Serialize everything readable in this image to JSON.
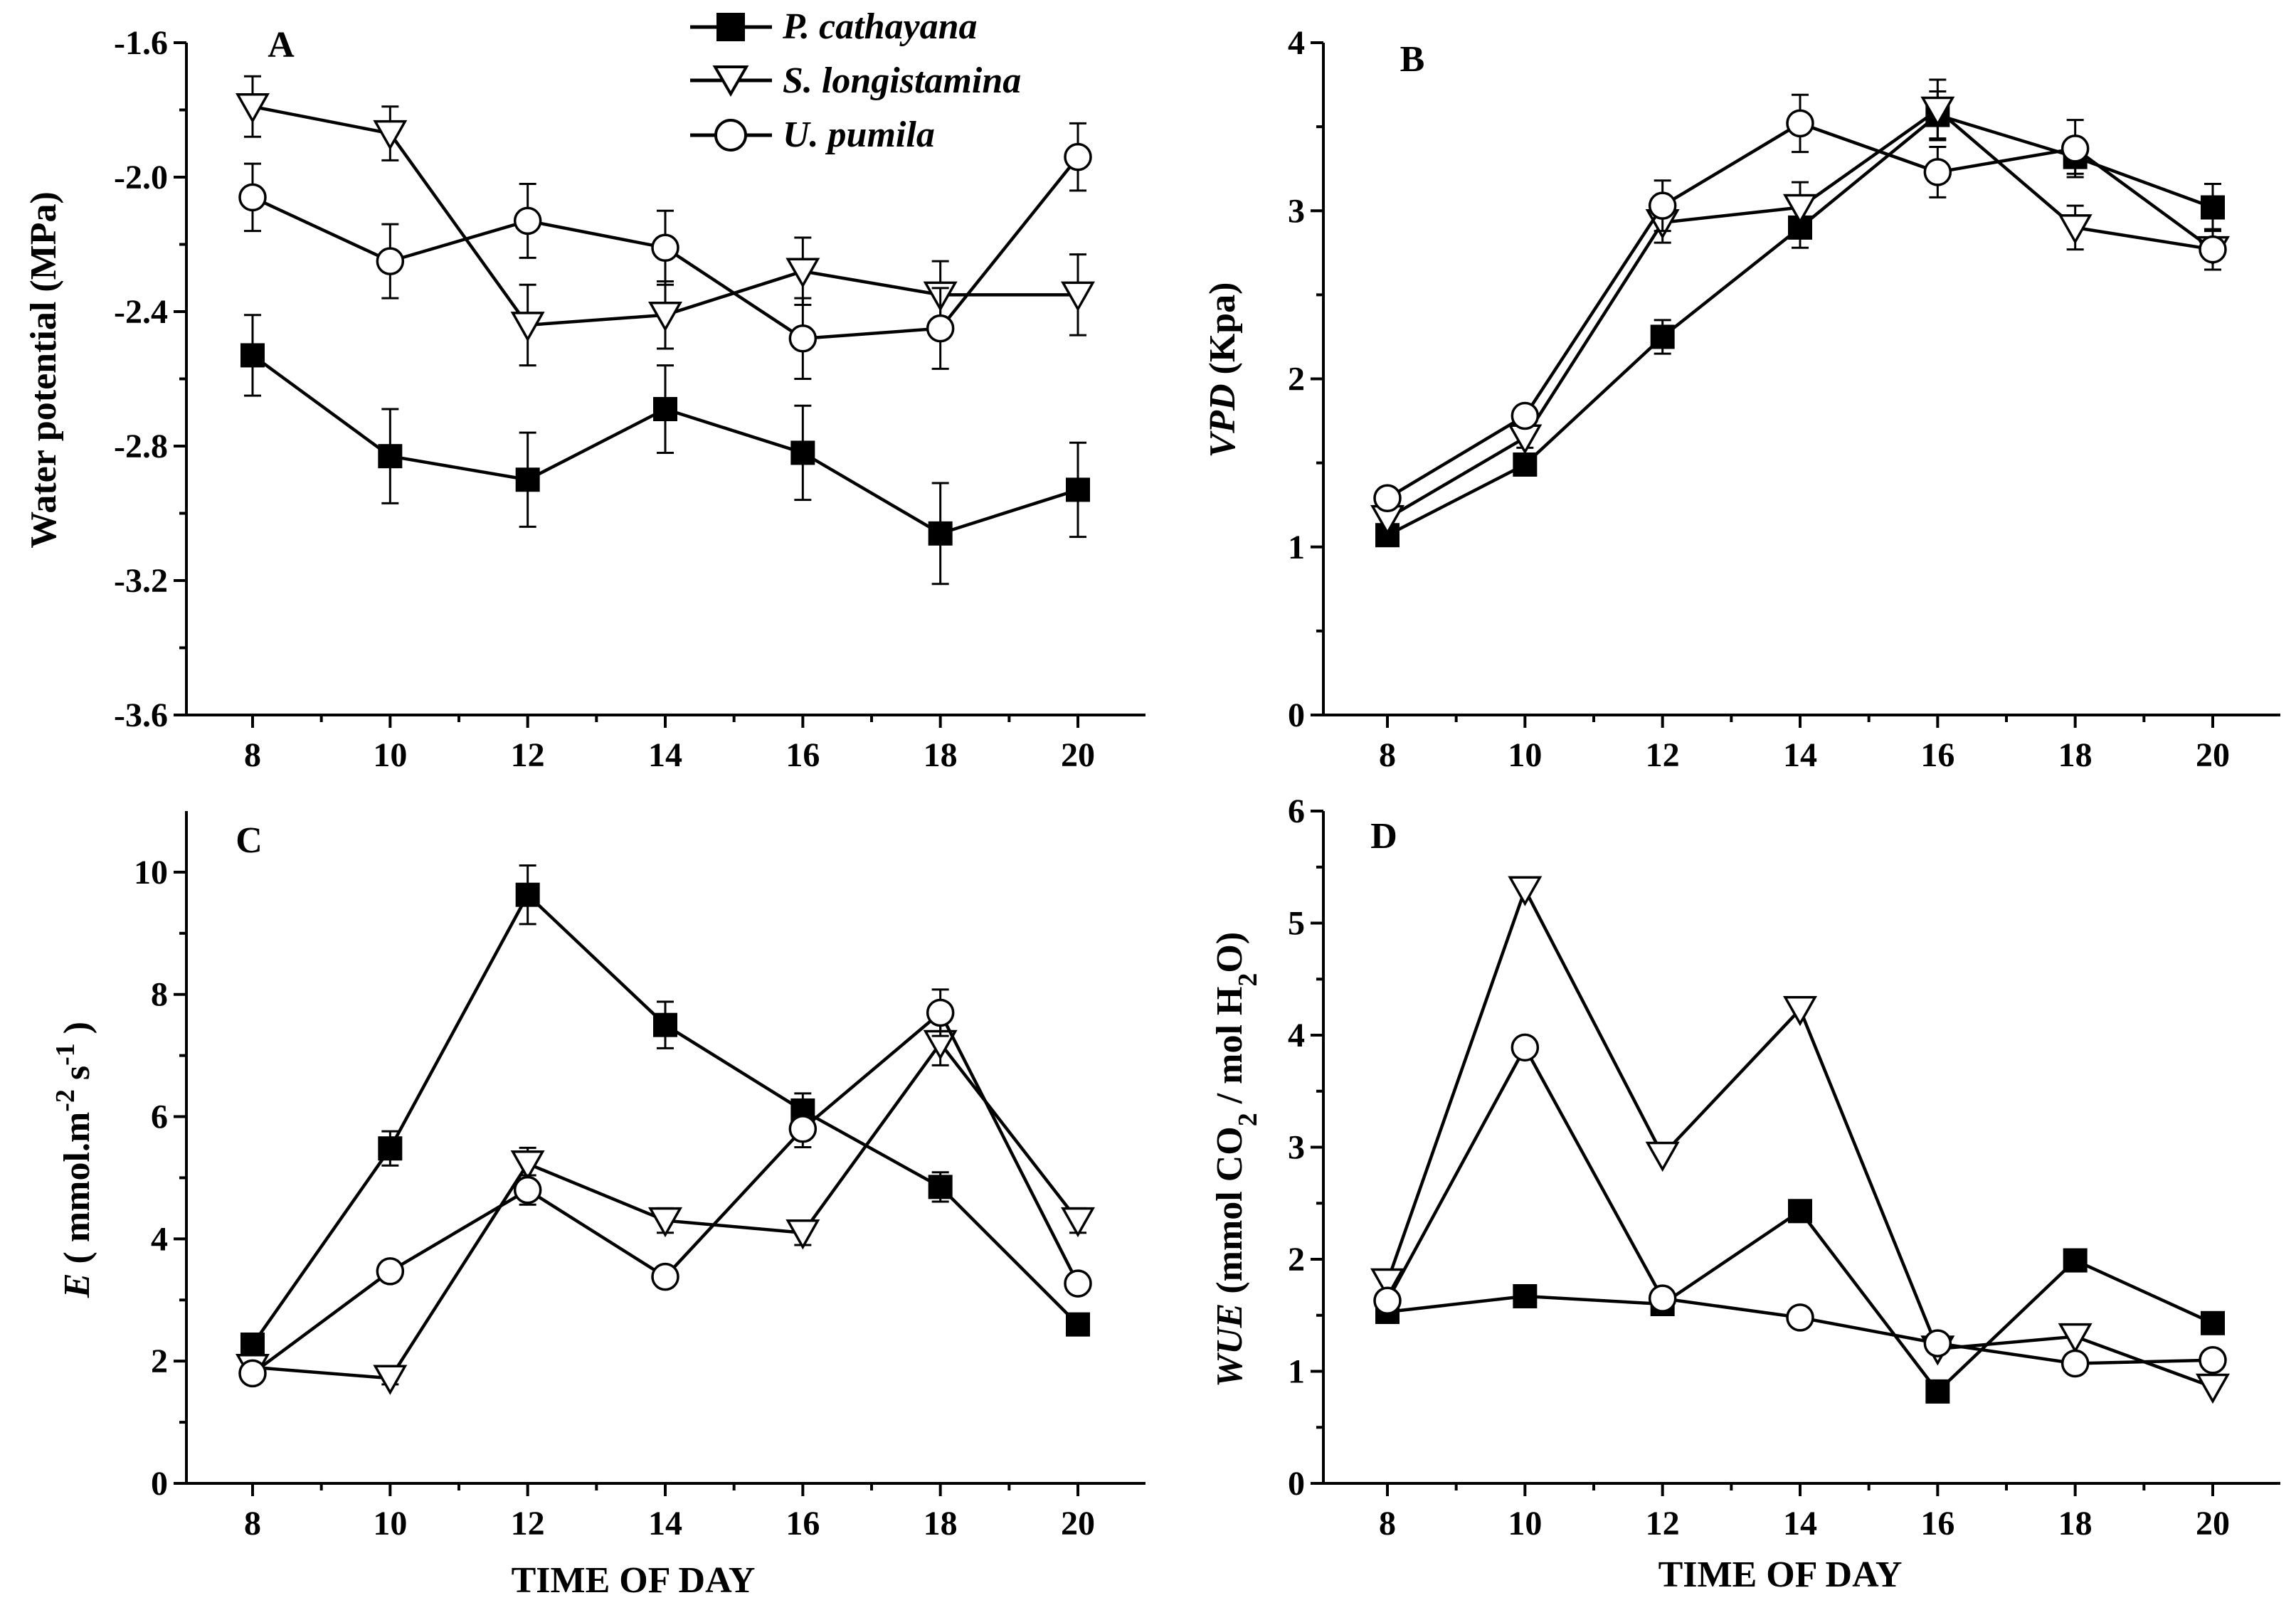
{
  "figure": {
    "x_label": "TIME OF DAY",
    "legend": [
      {
        "name": "P. cathayana",
        "marker": "square-filled"
      },
      {
        "name": "S. longistamina",
        "marker": "triangle-down-open"
      },
      {
        "name": "U. pumila",
        "marker": "circle-open"
      }
    ],
    "colors": {
      "line": "#000000",
      "marker_fill_open": "#ffffff",
      "marker_fill_solid": "#000000",
      "background": "#ffffff"
    }
  },
  "chart_data": [
    {
      "panel": "A",
      "type": "line",
      "title": "A",
      "ylabel_parts": [
        "Water potential (MPa)"
      ],
      "xlabel": "",
      "x": [
        8,
        10,
        12,
        14,
        16,
        18,
        20
      ],
      "xticks": [
        "8",
        "10",
        "12",
        "14",
        "16",
        "18",
        "20"
      ],
      "ylim": [
        -3.6,
        -1.6
      ],
      "yticks": [
        "-1.6",
        "-2.0",
        "-2.4",
        "-2.8",
        "-3.2",
        "-3.6"
      ],
      "ytick_values": [
        -1.6,
        -2.0,
        -2.4,
        -2.8,
        -3.2,
        -3.6
      ],
      "series": [
        {
          "name": "P. cathayana",
          "marker": "square",
          "values": [
            -2.53,
            -2.83,
            -2.9,
            -2.69,
            -2.82,
            -3.06,
            -2.93
          ],
          "errors": [
            0.12,
            0.14,
            0.14,
            0.13,
            0.14,
            0.15,
            0.14
          ]
        },
        {
          "name": "S. longistamina",
          "marker": "triangle",
          "values": [
            -1.79,
            -1.87,
            -2.44,
            -2.41,
            -2.28,
            -2.35,
            -2.35
          ],
          "errors": [
            0.09,
            0.08,
            0.12,
            0.1,
            0.1,
            0.1,
            0.12
          ]
        },
        {
          "name": "U. pumila",
          "marker": "circle",
          "values": [
            -2.06,
            -2.25,
            -2.13,
            -2.21,
            -2.48,
            -2.45,
            -1.94
          ],
          "errors": [
            0.1,
            0.11,
            0.11,
            0.11,
            0.12,
            0.12,
            0.1
          ]
        }
      ]
    },
    {
      "panel": "B",
      "type": "line",
      "title": "B",
      "ylabel_parts": [
        "VPD",
        " (Kpa)"
      ],
      "xlabel": "",
      "x": [
        8,
        10,
        12,
        14,
        16,
        18,
        20
      ],
      "xticks": [
        "8",
        "10",
        "12",
        "14",
        "16",
        "18",
        "20"
      ],
      "ylim": [
        0,
        4
      ],
      "yticks": [
        "0",
        "1",
        "2",
        "3",
        "4"
      ],
      "ytick_values": [
        0,
        1,
        2,
        3,
        4
      ],
      "series": [
        {
          "name": "P. cathayana",
          "marker": "square",
          "values": [
            1.07,
            1.49,
            2.25,
            2.9,
            3.57,
            3.32,
            3.02
          ],
          "errors": [
            0.04,
            0.06,
            0.1,
            0.12,
            0.14,
            0.1,
            0.14
          ]
        },
        {
          "name": "S. longistamina",
          "marker": "triangle",
          "values": [
            1.17,
            1.65,
            2.93,
            3.02,
            3.6,
            2.9,
            2.77
          ],
          "errors": [
            0.04,
            0.06,
            0.12,
            0.15,
            0.18,
            0.13,
            0.12
          ]
        },
        {
          "name": "U. pumila",
          "marker": "circle",
          "values": [
            1.29,
            1.78,
            3.03,
            3.52,
            3.23,
            3.37,
            2.77
          ],
          "errors": [
            0.04,
            0.06,
            0.15,
            0.17,
            0.15,
            0.17,
            0.12
          ]
        }
      ]
    },
    {
      "panel": "C",
      "type": "line",
      "title": "C",
      "ylabel_parts": [
        "E",
        " ( mmol.m",
        "-2",
        " s",
        "-1",
        " )"
      ],
      "xlabel": "TIME OF DAY",
      "x": [
        8,
        10,
        12,
        14,
        16,
        18,
        20
      ],
      "xticks": [
        "8",
        "10",
        "12",
        "14",
        "16",
        "18",
        "20"
      ],
      "ylim": [
        0,
        11
      ],
      "yticks": [
        "0",
        "2",
        "4",
        "6",
        "8",
        "10"
      ],
      "ytick_values": [
        0,
        2,
        4,
        6,
        8,
        10
      ],
      "series": [
        {
          "name": "P. cathayana",
          "marker": "square",
          "values": [
            2.27,
            5.48,
            9.63,
            7.5,
            6.1,
            4.85,
            2.6
          ],
          "errors": [
            0.15,
            0.28,
            0.48,
            0.38,
            0.28,
            0.24,
            0.15
          ]
        },
        {
          "name": "S. longistamina",
          "marker": "triangle",
          "values": [
            1.9,
            1.72,
            5.23,
            4.3,
            4.1,
            7.2,
            4.3
          ],
          "errors": [
            0.1,
            0.1,
            0.26,
            0.2,
            0.2,
            0.36,
            0.2
          ]
        },
        {
          "name": "U. pumila",
          "marker": "circle",
          "values": [
            1.8,
            3.47,
            4.8,
            3.38,
            5.8,
            7.7,
            3.27
          ],
          "errors": [
            0.1,
            0.17,
            0.24,
            0.17,
            0.3,
            0.38,
            0.17
          ]
        }
      ]
    },
    {
      "panel": "D",
      "type": "line",
      "title": "D",
      "ylabel_parts": [
        "WUE",
        "  (mmol CO",
        "2",
        " / mol H",
        "2",
        "O)"
      ],
      "xlabel": "TIME OF DAY",
      "x": [
        8,
        10,
        12,
        14,
        16,
        18,
        20
      ],
      "xticks": [
        "8",
        "10",
        "12",
        "14",
        "16",
        "18",
        "20"
      ],
      "ylim": [
        0,
        6
      ],
      "yticks": [
        "0",
        "1",
        "2",
        "3",
        "4",
        "5",
        "6"
      ],
      "ytick_values": [
        0,
        1,
        2,
        3,
        4,
        5,
        6
      ],
      "series": [
        {
          "name": "P. cathayana",
          "marker": "square",
          "values": [
            1.53,
            1.67,
            1.6,
            2.43,
            0.82,
            1.99,
            1.43
          ],
          "errors": [
            0,
            0,
            0,
            0,
            0,
            0,
            0
          ]
        },
        {
          "name": "S. longistamina",
          "marker": "triangle",
          "values": [
            1.8,
            5.3,
            2.93,
            4.23,
            1.2,
            1.31,
            0.86
          ],
          "errors": [
            0,
            0,
            0,
            0,
            0,
            0,
            0
          ]
        },
        {
          "name": "U. pumila",
          "marker": "circle",
          "values": [
            1.63,
            3.89,
            1.65,
            1.48,
            1.25,
            1.07,
            1.1
          ],
          "errors": [
            0,
            0,
            0,
            0,
            0,
            0,
            0
          ]
        }
      ]
    }
  ]
}
